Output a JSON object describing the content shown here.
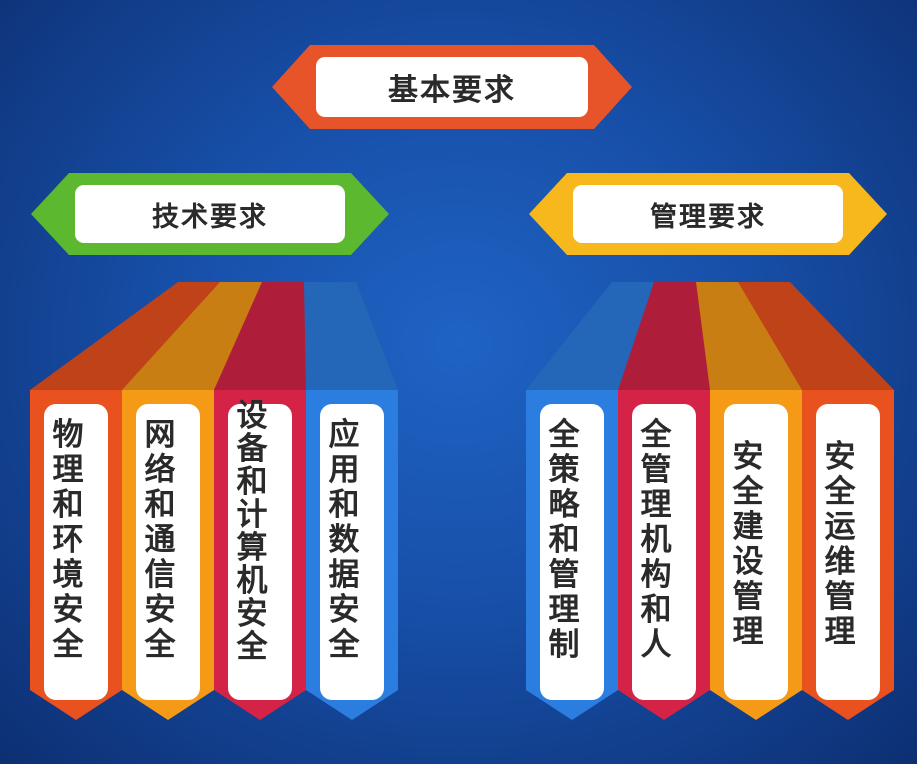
{
  "top": {
    "label": "基本要求",
    "color": "#e8542a"
  },
  "branches": [
    {
      "key": "tech",
      "label": "技术要求",
      "color": "#5cb82e",
      "items": [
        {
          "text": "物理和环境安全",
          "color": "#e9511f"
        },
        {
          "text": "网络和通信安全",
          "color": "#f49a16"
        },
        {
          "text": "设备和计算机安全",
          "color": "#d42347"
        },
        {
          "text": "应用和数据安全",
          "color": "#2c7de0"
        }
      ]
    },
    {
      "key": "mgmt",
      "label": "管理要求",
      "color": "#f6b81c",
      "items": [
        {
          "text": "全策略和管理制",
          "color": "#2c7de0"
        },
        {
          "text": "全管理机构和人",
          "color": "#d42347"
        },
        {
          "text": "安全建设管理",
          "color": "#f49a16"
        },
        {
          "text": "安全运维管理",
          "color": "#e9511f"
        }
      ]
    }
  ]
}
